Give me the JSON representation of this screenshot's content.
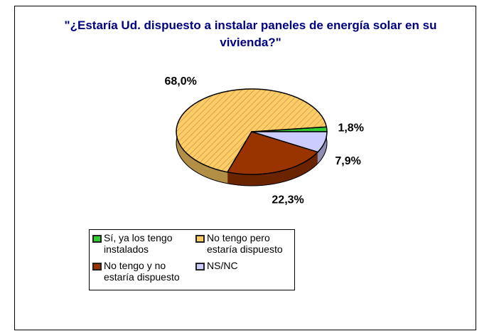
{
  "chart_data": {
    "type": "pie",
    "title": "\"¿Estaría Ud. dispuesto a instalar paneles de energía solar en su vivienda?\"",
    "categories": [
      "Sí, ya los tengo instalados",
      "No tengo pero estaría dispuesto",
      "No tengo y no estaría dispuesto",
      "NS/NC"
    ],
    "values": [
      1.8,
      68.0,
      22.3,
      7.9
    ],
    "value_labels": [
      "1,8%",
      "68,0%",
      "22,3%",
      "7,9%"
    ],
    "colors": [
      "#33cc33",
      "#ffcc66",
      "#993300",
      "#ccccff"
    ]
  }
}
